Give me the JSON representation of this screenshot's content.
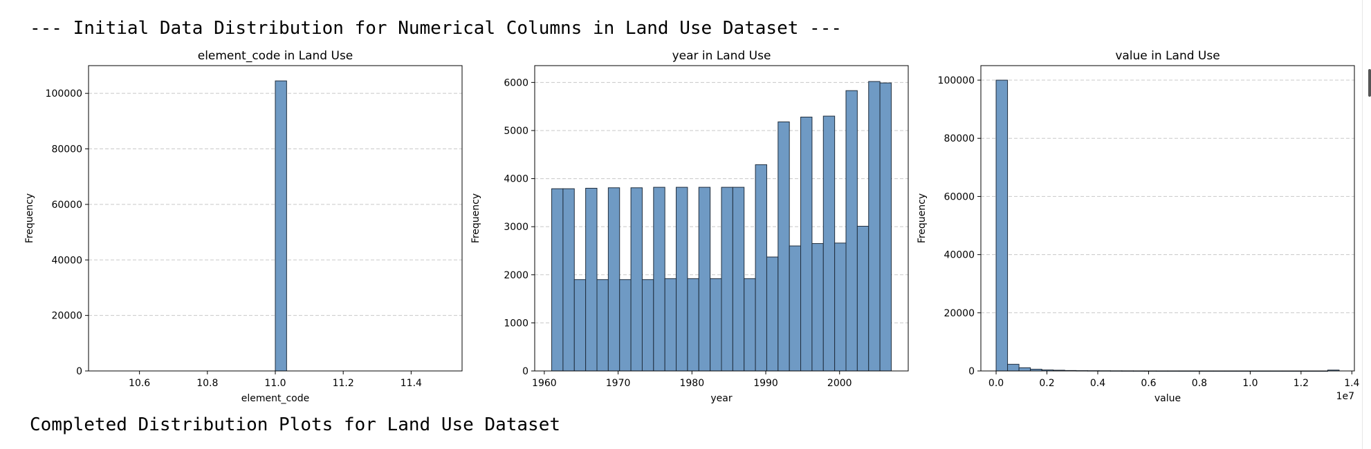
{
  "output": {
    "header": "--- Initial Data Distribution for Numerical Columns in Land Use Dataset ---",
    "footer": "Completed Distribution Plots for Land Use Dataset"
  },
  "colors": {
    "bar_fill": "#6f9ac4",
    "bar_edge": "#1f2d3d",
    "grid": "#c8c8c8"
  },
  "chart_data": [
    {
      "type": "bar",
      "title": "element_code in Land Use",
      "xlabel": "element_code",
      "ylabel": "Frequency",
      "xlim": [
        10.45,
        11.55
      ],
      "ylim": [
        0,
        110000
      ],
      "xticks": [
        10.6,
        10.8,
        11.0,
        11.2,
        11.4
      ],
      "xtick_labels": [
        "10.6",
        "10.8",
        "11.0",
        "11.2",
        "11.4"
      ],
      "yticks": [
        0,
        20000,
        40000,
        60000,
        80000,
        100000
      ],
      "ytick_labels": [
        "0",
        "20000",
        "40000",
        "60000",
        "80000",
        "100000"
      ],
      "grid": "y-dashed",
      "bins": [
        {
          "x0": 11.0,
          "x1": 11.0333,
          "count": 104500
        }
      ]
    },
    {
      "type": "bar",
      "title": "year in Land Use",
      "xlabel": "year",
      "ylabel": "Frequency",
      "xlim": [
        1958.7,
        2009.3
      ],
      "ylim": [
        0,
        6350
      ],
      "xticks": [
        1960,
        1970,
        1980,
        1990,
        2000
      ],
      "xtick_labels": [
        "1960",
        "1970",
        "1980",
        "1990",
        "2000"
      ],
      "yticks": [
        0,
        1000,
        2000,
        3000,
        4000,
        5000,
        6000
      ],
      "ytick_labels": [
        "0",
        "1000",
        "2000",
        "3000",
        "4000",
        "5000",
        "6000"
      ],
      "grid": "y-dashed",
      "bin_start": 1961,
      "bin_end": 2007,
      "counts": [
        3790,
        3790,
        1900,
        3800,
        1900,
        3810,
        1900,
        3810,
        1900,
        3820,
        1920,
        3820,
        1920,
        3820,
        1920,
        3820,
        3820,
        1920,
        4290,
        2370,
        5180,
        2600,
        5280,
        2650,
        5300,
        2660,
        5830,
        3010,
        6020,
        5990
      ]
    },
    {
      "type": "bar",
      "title": "value in Land Use",
      "xlabel": "value",
      "ylabel": "Frequency",
      "offset_label": "1e7",
      "xlim": [
        -0.06,
        1.41
      ],
      "ylim": [
        0,
        105000
      ],
      "xticks": [
        0.0,
        0.2,
        0.4,
        0.6,
        0.8,
        1.0,
        1.2,
        1.4
      ],
      "xtick_labels": [
        "0.0",
        "0.2",
        "0.4",
        "0.6",
        "0.8",
        "1.0",
        "1.2",
        "1.4"
      ],
      "yticks": [
        0,
        20000,
        40000,
        60000,
        80000,
        100000
      ],
      "ytick_labels": [
        "0",
        "20000",
        "40000",
        "60000",
        "80000",
        "100000"
      ],
      "grid": "y-dashed",
      "bin_start": 0.0,
      "bin_end": 1.35,
      "counts": [
        100000,
        2300,
        1100,
        600,
        350,
        250,
        150,
        100,
        80,
        60,
        40,
        30,
        20,
        15,
        10,
        10,
        8,
        6,
        5,
        4,
        3,
        3,
        2,
        2,
        2,
        1,
        1,
        1,
        1,
        300
      ]
    }
  ]
}
